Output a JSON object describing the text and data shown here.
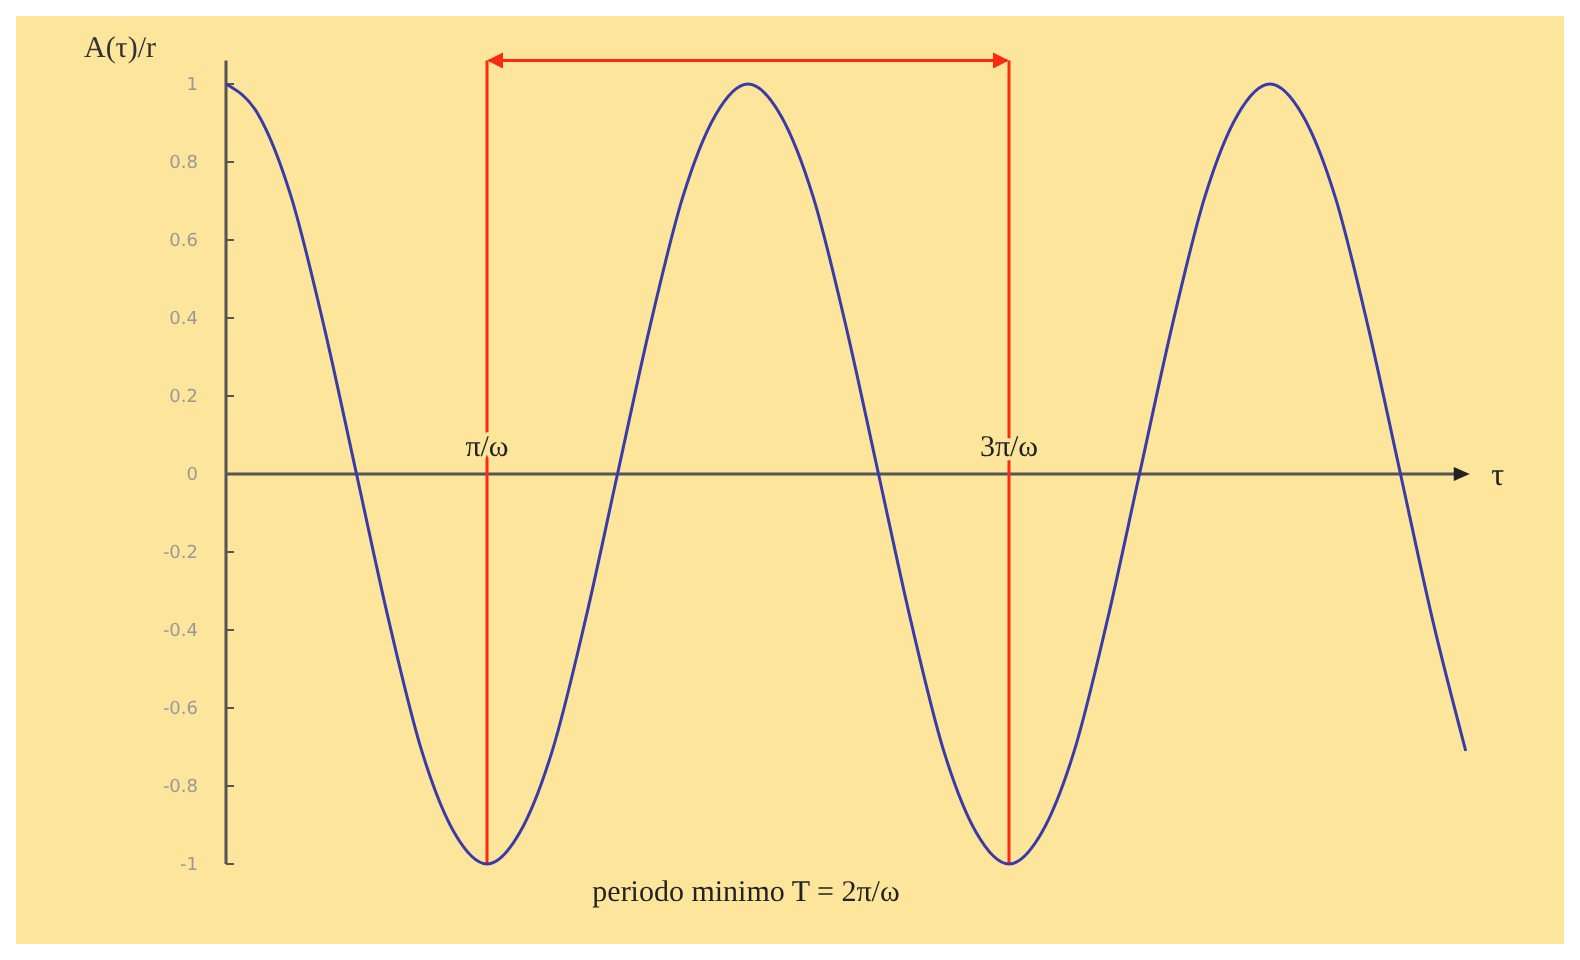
{
  "chart_data": {
    "type": "line",
    "ylabel": "A(τ)/r",
    "xlabel": "τ",
    "categories": [
      null,
      null,
      null,
      null,
      null,
      null,
      null,
      null,
      "π/ω",
      null,
      null,
      null,
      null,
      null,
      null,
      null,
      null,
      null,
      null,
      null,
      null,
      null,
      null,
      null,
      "3π/ω",
      null,
      null,
      null,
      null,
      null,
      null,
      null,
      null,
      null,
      null,
      null,
      null,
      null,
      null
    ],
    "series": [
      {
        "color": "#3a3aa8",
        "values": [
          1,
          0.92,
          0.71,
          0.38,
          0,
          -0.38,
          -0.71,
          -0.92,
          -1,
          -0.92,
          -0.71,
          -0.38,
          0,
          0.38,
          0.71,
          0.92,
          1,
          0.92,
          0.71,
          0.38,
          0,
          -0.38,
          -0.71,
          -0.92,
          -1,
          -0.92,
          -0.71,
          -0.38,
          0,
          0.38,
          0.71,
          0.92,
          1,
          0.92,
          0.71,
          0.38,
          0,
          -0.38,
          -0.71
        ]
      }
    ],
    "ylim": [
      -1,
      1.06
    ],
    "yticks": [
      -1,
      -0.8,
      -0.6,
      -0.4,
      -0.2,
      0,
      0.2,
      0.4,
      0.6,
      0.8,
      1
    ],
    "annotations": [
      "periodo minimo T = 2π/ω"
    ],
    "marker": "none",
    "line_style": "solid"
  }
}
